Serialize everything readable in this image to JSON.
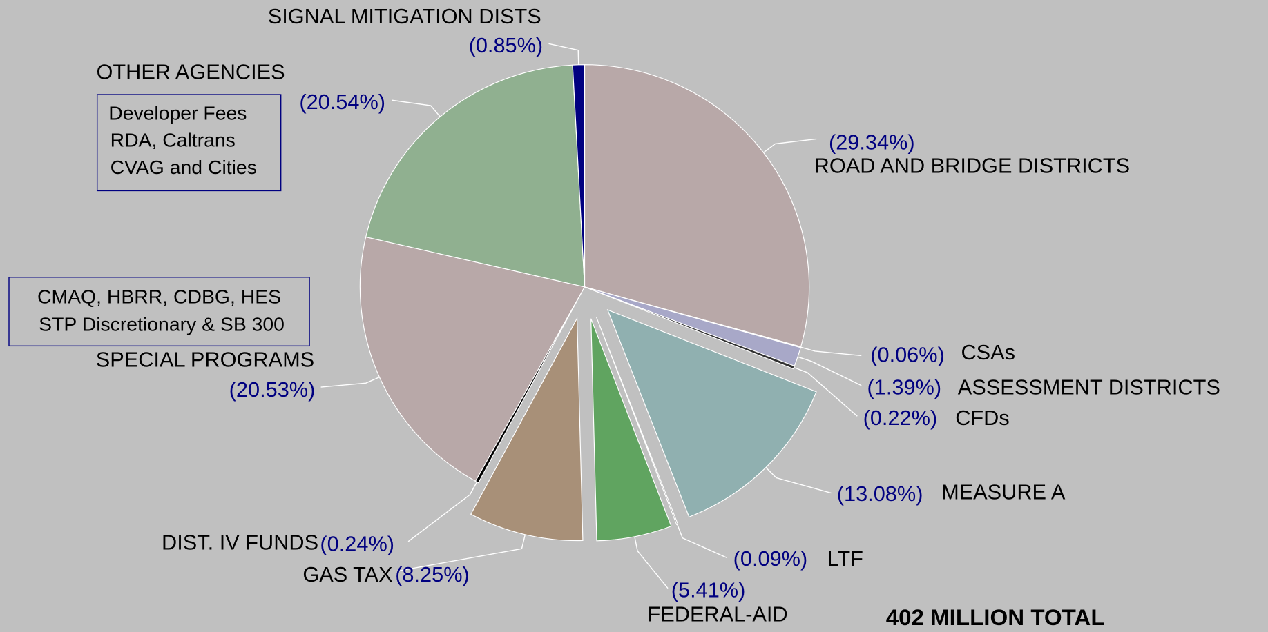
{
  "chart_data": {
    "type": "pie",
    "title": "402 MILLION TOTAL",
    "categories": [
      "ROAD AND BRIDGE DISTRICTS",
      "CSAs",
      "ASSESSMENT DISTRICTS",
      "CFDs",
      "MEASURE A",
      "LTF",
      "FEDERAL-AID",
      "GAS TAX",
      "DIST. IV FUNDS",
      "SPECIAL PROGRAMS",
      "OTHER AGENCIES",
      "SIGNAL MITIGATION DISTS"
    ],
    "values": [
      29.34,
      0.06,
      1.39,
      0.22,
      13.08,
      0.09,
      5.41,
      8.25,
      0.24,
      20.53,
      20.54,
      0.85
    ],
    "value_labels": [
      "(29.34%)",
      "(0.06%)",
      "(1.39%)",
      "(0.22%)",
      "(13.08%)",
      "(0.09%)",
      "(5.41%)",
      "(8.25%)",
      "(0.24%)",
      "(20.53%)",
      "(20.54%)",
      "(0.85%)"
    ],
    "colors": [
      "#b8a8a8",
      "#b0b0c8",
      "#a8a8c8",
      "#303030",
      "#90b0b0",
      "#a0a0a0",
      "#60a460",
      "#a89078",
      "#000000",
      "#b8a8a8",
      "#90b090",
      "#000080"
    ],
    "annotations": {
      "other_agencies_note": [
        "Developer Fees",
        "RDA, Caltrans",
        "CVAG and Cities"
      ],
      "special_programs_note": [
        "CMAQ, HBRR, CDBG, HES",
        "STP Discretionary & SB 300"
      ]
    }
  }
}
